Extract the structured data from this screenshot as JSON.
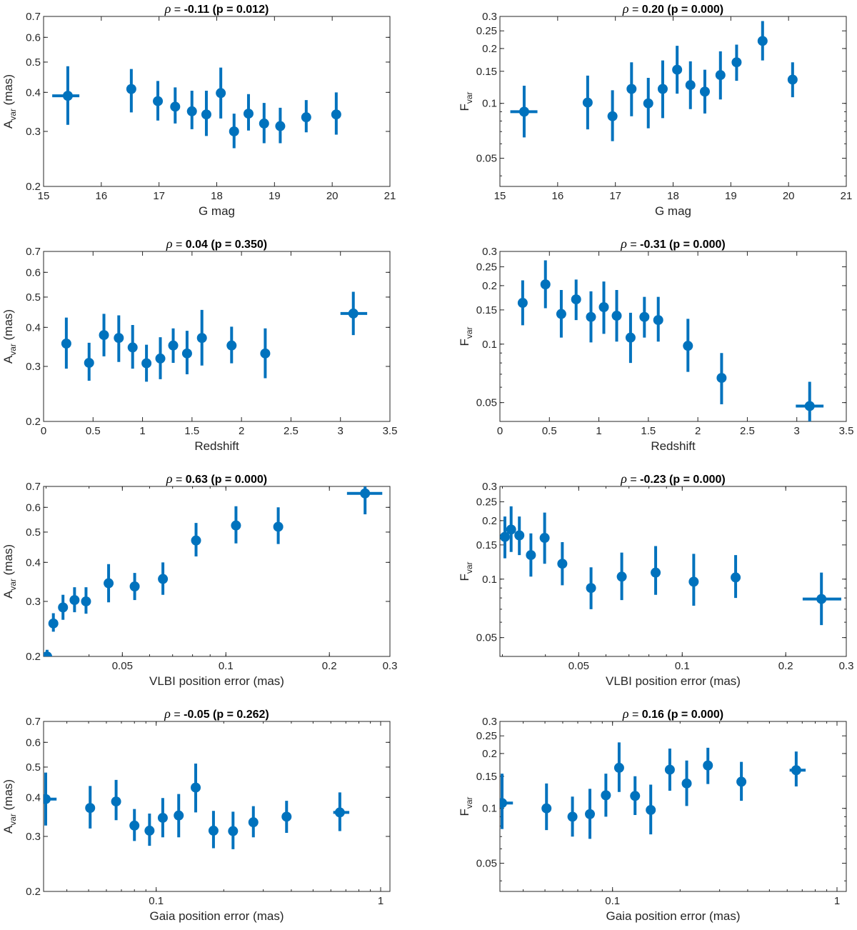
{
  "figure": {
    "marker_color": "#0072bd",
    "axis_color": "#262626"
  },
  "chart_data": [
    {
      "type": "scatter",
      "title_value": "-0.11",
      "title_p": "0.012",
      "xlabel": "G mag",
      "ylabel": "A",
      "ylabel_sub": "var",
      "ylabel_unit": " (mas)",
      "xscale": "linear",
      "yscale": "log",
      "xlim": [
        15,
        21
      ],
      "ylim": [
        0.2,
        0.7
      ],
      "xticks": [
        15,
        16,
        17,
        18,
        19,
        20,
        21
      ],
      "xtick_labels": [
        "15",
        "16",
        "17",
        "18",
        "19",
        "20",
        "21"
      ],
      "yticks": [
        0.2,
        0.3,
        0.4,
        0.5,
        0.6,
        0.7
      ],
      "ytick_labels": [
        "0.2",
        "0.3",
        "0.4",
        "0.5",
        "0.6",
        "0.7"
      ],
      "points": [
        {
          "x": 15.42,
          "y": 0.39,
          "ylo": 0.315,
          "yhi": 0.485,
          "xlo": 15.15,
          "xhi": 15.62
        },
        {
          "x": 16.52,
          "y": 0.41,
          "ylo": 0.345,
          "yhi": 0.475
        },
        {
          "x": 16.98,
          "y": 0.375,
          "ylo": 0.325,
          "yhi": 0.435
        },
        {
          "x": 17.28,
          "y": 0.36,
          "ylo": 0.318,
          "yhi": 0.415
        },
        {
          "x": 17.57,
          "y": 0.348,
          "ylo": 0.305,
          "yhi": 0.405
        },
        {
          "x": 17.82,
          "y": 0.34,
          "ylo": 0.29,
          "yhi": 0.405
        },
        {
          "x": 18.07,
          "y": 0.398,
          "ylo": 0.33,
          "yhi": 0.48
        },
        {
          "x": 18.3,
          "y": 0.3,
          "ylo": 0.265,
          "yhi": 0.342
        },
        {
          "x": 18.55,
          "y": 0.342,
          "ylo": 0.302,
          "yhi": 0.395
        },
        {
          "x": 18.82,
          "y": 0.318,
          "ylo": 0.275,
          "yhi": 0.37
        },
        {
          "x": 19.1,
          "y": 0.312,
          "ylo": 0.275,
          "yhi": 0.357
        },
        {
          "x": 19.55,
          "y": 0.333,
          "ylo": 0.298,
          "yhi": 0.378
        },
        {
          "x": 20.07,
          "y": 0.34,
          "ylo": 0.293,
          "yhi": 0.4
        }
      ]
    },
    {
      "type": "scatter",
      "title_value": "0.20",
      "title_p": "0.000",
      "xlabel": "G mag",
      "ylabel": "F",
      "ylabel_sub": "var",
      "ylabel_unit": "",
      "xscale": "linear",
      "yscale": "log",
      "xlim": [
        15,
        21
      ],
      "ylim": [
        0.035,
        0.3
      ],
      "xticks": [
        15,
        16,
        17,
        18,
        19,
        20,
        21
      ],
      "xtick_labels": [
        "15",
        "16",
        "17",
        "18",
        "19",
        "20",
        "21"
      ],
      "yticks": [
        0.05,
        0.1,
        0.15,
        0.2,
        0.25,
        0.3
      ],
      "ytick_labels": [
        "0.05",
        "0.1",
        "0.15",
        "0.2",
        "0.25",
        "0.3"
      ],
      "points": [
        {
          "x": 15.42,
          "y": 0.09,
          "ylo": 0.065,
          "yhi": 0.125,
          "xlo": 15.18,
          "xhi": 15.65
        },
        {
          "x": 16.52,
          "y": 0.101,
          "ylo": 0.072,
          "yhi": 0.142
        },
        {
          "x": 16.95,
          "y": 0.085,
          "ylo": 0.062,
          "yhi": 0.118
        },
        {
          "x": 17.28,
          "y": 0.12,
          "ylo": 0.085,
          "yhi": 0.168
        },
        {
          "x": 17.57,
          "y": 0.1,
          "ylo": 0.073,
          "yhi": 0.138
        },
        {
          "x": 17.82,
          "y": 0.12,
          "ylo": 0.083,
          "yhi": 0.172
        },
        {
          "x": 18.07,
          "y": 0.153,
          "ylo": 0.113,
          "yhi": 0.207
        },
        {
          "x": 18.3,
          "y": 0.126,
          "ylo": 0.093,
          "yhi": 0.17
        },
        {
          "x": 18.55,
          "y": 0.116,
          "ylo": 0.088,
          "yhi": 0.153
        },
        {
          "x": 18.82,
          "y": 0.143,
          "ylo": 0.105,
          "yhi": 0.193
        },
        {
          "x": 19.1,
          "y": 0.168,
          "ylo": 0.133,
          "yhi": 0.21
        },
        {
          "x": 19.55,
          "y": 0.22,
          "ylo": 0.172,
          "yhi": 0.283
        },
        {
          "x": 20.07,
          "y": 0.135,
          "ylo": 0.108,
          "yhi": 0.168
        }
      ]
    },
    {
      "type": "scatter",
      "title_value": "0.04",
      "title_p": "0.350",
      "xlabel": "Redshift",
      "ylabel": "A",
      "ylabel_sub": "var",
      "ylabel_unit": " (mas)",
      "xscale": "linear",
      "yscale": "log",
      "xlim": [
        0,
        3.5
      ],
      "ylim": [
        0.2,
        0.7
      ],
      "xticks": [
        0,
        0.5,
        1,
        1.5,
        2,
        2.5,
        3,
        3.5
      ],
      "xtick_labels": [
        "0",
        "0.5",
        "1",
        "1.5",
        "2",
        "2.5",
        "3",
        "3.5"
      ],
      "yticks": [
        0.2,
        0.3,
        0.4,
        0.5,
        0.6,
        0.7
      ],
      "ytick_labels": [
        "0.2",
        "0.3",
        "0.4",
        "0.5",
        "0.6",
        "0.7"
      ],
      "points": [
        {
          "x": 0.23,
          "y": 0.355,
          "ylo": 0.295,
          "yhi": 0.43
        },
        {
          "x": 0.46,
          "y": 0.308,
          "ylo": 0.27,
          "yhi": 0.357
        },
        {
          "x": 0.61,
          "y": 0.378,
          "ylo": 0.323,
          "yhi": 0.442
        },
        {
          "x": 0.76,
          "y": 0.37,
          "ylo": 0.31,
          "yhi": 0.437
        },
        {
          "x": 0.9,
          "y": 0.345,
          "ylo": 0.295,
          "yhi": 0.407
        },
        {
          "x": 1.04,
          "y": 0.307,
          "ylo": 0.268,
          "yhi": 0.352
        },
        {
          "x": 1.18,
          "y": 0.318,
          "ylo": 0.273,
          "yhi": 0.372
        },
        {
          "x": 1.31,
          "y": 0.35,
          "ylo": 0.308,
          "yhi": 0.397
        },
        {
          "x": 1.45,
          "y": 0.33,
          "ylo": 0.283,
          "yhi": 0.39
        },
        {
          "x": 1.6,
          "y": 0.37,
          "ylo": 0.302,
          "yhi": 0.455
        },
        {
          "x": 1.9,
          "y": 0.35,
          "ylo": 0.307,
          "yhi": 0.402
        },
        {
          "x": 2.24,
          "y": 0.33,
          "ylo": 0.275,
          "yhi": 0.397
        },
        {
          "x": 3.13,
          "y": 0.443,
          "ylo": 0.378,
          "yhi": 0.52,
          "xlo": 3.0,
          "xhi": 3.27
        }
      ]
    },
    {
      "type": "scatter",
      "title_value": "-0.31",
      "title_p": "0.000",
      "xlabel": "Redshift",
      "ylabel": "F",
      "ylabel_sub": "var",
      "ylabel_unit": "",
      "xscale": "linear",
      "yscale": "log",
      "xlim": [
        0,
        3.5
      ],
      "ylim": [
        0.04,
        0.3
      ],
      "xticks": [
        0,
        0.5,
        1,
        1.5,
        2,
        2.5,
        3,
        3.5
      ],
      "xtick_labels": [
        "0",
        "0.5",
        "1",
        "1.5",
        "2",
        "2.5",
        "3",
        "3.5"
      ],
      "yticks": [
        0.05,
        0.1,
        0.15,
        0.2,
        0.25,
        0.3
      ],
      "ytick_labels": [
        "0.05",
        "0.1",
        "0.15",
        "0.2",
        "0.25",
        "0.3"
      ],
      "points": [
        {
          "x": 0.23,
          "y": 0.163,
          "ylo": 0.125,
          "yhi": 0.213
        },
        {
          "x": 0.46,
          "y": 0.203,
          "ylo": 0.153,
          "yhi": 0.27
        },
        {
          "x": 0.62,
          "y": 0.143,
          "ylo": 0.108,
          "yhi": 0.19
        },
        {
          "x": 0.77,
          "y": 0.17,
          "ylo": 0.133,
          "yhi": 0.215
        },
        {
          "x": 0.92,
          "y": 0.138,
          "ylo": 0.102,
          "yhi": 0.187
        },
        {
          "x": 1.05,
          "y": 0.155,
          "ylo": 0.113,
          "yhi": 0.21
        },
        {
          "x": 1.18,
          "y": 0.14,
          "ylo": 0.103,
          "yhi": 0.19
        },
        {
          "x": 1.32,
          "y": 0.108,
          "ylo": 0.08,
          "yhi": 0.145
        },
        {
          "x": 1.46,
          "y": 0.138,
          "ylo": 0.108,
          "yhi": 0.175
        },
        {
          "x": 1.6,
          "y": 0.133,
          "ylo": 0.103,
          "yhi": 0.175
        },
        {
          "x": 1.9,
          "y": 0.098,
          "ylo": 0.072,
          "yhi": 0.135
        },
        {
          "x": 2.24,
          "y": 0.067,
          "ylo": 0.049,
          "yhi": 0.09
        },
        {
          "x": 3.13,
          "y": 0.048,
          "ylo": 0.04,
          "yhi": 0.064,
          "xlo": 2.99,
          "xhi": 3.27
        }
      ]
    },
    {
      "type": "scatter",
      "title_value": "0.63",
      "title_p": "0.000",
      "xlabel": "VLBI position error (mas)",
      "ylabel": "A",
      "ylabel_sub": "var",
      "ylabel_unit": " (mas)",
      "xscale": "log",
      "yscale": "log",
      "xlim": [
        0.0295,
        0.3
      ],
      "ylim": [
        0.2,
        0.7
      ],
      "xticks": [
        0.05,
        0.1,
        0.2,
        0.3
      ],
      "xtick_labels": [
        "0.05",
        "0.1",
        "0.2",
        "0.3"
      ],
      "yticks": [
        0.2,
        0.3,
        0.4,
        0.5,
        0.6,
        0.7
      ],
      "ytick_labels": [
        "0.2",
        "0.3",
        "0.4",
        "0.5",
        "0.6",
        "0.7"
      ],
      "points": [
        {
          "x": 0.0302,
          "y": 0.2,
          "ylo": 0.2,
          "yhi": 0.21,
          "xlo": 0.0296,
          "xhi": 0.0312
        },
        {
          "x": 0.0315,
          "y": 0.255,
          "ylo": 0.24,
          "yhi": 0.275
        },
        {
          "x": 0.0336,
          "y": 0.287,
          "ylo": 0.262,
          "yhi": 0.315
        },
        {
          "x": 0.0363,
          "y": 0.303,
          "ylo": 0.277,
          "yhi": 0.333
        },
        {
          "x": 0.0392,
          "y": 0.3,
          "ylo": 0.274,
          "yhi": 0.333
        },
        {
          "x": 0.0456,
          "y": 0.343,
          "ylo": 0.298,
          "yhi": 0.395
        },
        {
          "x": 0.0543,
          "y": 0.335,
          "ylo": 0.303,
          "yhi": 0.37
        },
        {
          "x": 0.0656,
          "y": 0.354,
          "ylo": 0.315,
          "yhi": 0.4
        },
        {
          "x": 0.0819,
          "y": 0.47,
          "ylo": 0.418,
          "yhi": 0.535
        },
        {
          "x": 0.107,
          "y": 0.525,
          "ylo": 0.46,
          "yhi": 0.605
        },
        {
          "x": 0.142,
          "y": 0.52,
          "ylo": 0.458,
          "yhi": 0.6
        },
        {
          "x": 0.254,
          "y": 0.665,
          "ylo": 0.57,
          "yhi": 0.7,
          "xlo": 0.225,
          "xhi": 0.285
        }
      ]
    },
    {
      "type": "scatter",
      "title_value": "-0.23",
      "title_p": "0.000",
      "xlabel": "VLBI position error (mas)",
      "ylabel": "F",
      "ylabel_sub": "var",
      "ylabel_unit": "",
      "xscale": "log",
      "yscale": "log",
      "xlim": [
        0.0295,
        0.3
      ],
      "ylim": [
        0.04,
        0.3
      ],
      "xticks": [
        0.05,
        0.1,
        0.2,
        0.3
      ],
      "xtick_labels": [
        "0.05",
        "0.1",
        "0.2",
        "0.3"
      ],
      "yticks": [
        0.05,
        0.1,
        0.15,
        0.2,
        0.25,
        0.3
      ],
      "ytick_labels": [
        "0.05",
        "0.1",
        "0.15",
        "0.2",
        "0.25",
        "0.3"
      ],
      "points": [
        {
          "x": 0.0305,
          "y": 0.165,
          "ylo": 0.128,
          "yhi": 0.21
        },
        {
          "x": 0.0318,
          "y": 0.18,
          "ylo": 0.138,
          "yhi": 0.237
        },
        {
          "x": 0.0336,
          "y": 0.168,
          "ylo": 0.133,
          "yhi": 0.21
        },
        {
          "x": 0.0363,
          "y": 0.133,
          "ylo": 0.103,
          "yhi": 0.172
        },
        {
          "x": 0.0398,
          "y": 0.163,
          "ylo": 0.12,
          "yhi": 0.22
        },
        {
          "x": 0.0448,
          "y": 0.12,
          "ylo": 0.093,
          "yhi": 0.155
        },
        {
          "x": 0.0543,
          "y": 0.09,
          "ylo": 0.07,
          "yhi": 0.115
        },
        {
          "x": 0.0667,
          "y": 0.103,
          "ylo": 0.078,
          "yhi": 0.137
        },
        {
          "x": 0.0837,
          "y": 0.108,
          "ylo": 0.083,
          "yhi": 0.148
        },
        {
          "x": 0.108,
          "y": 0.097,
          "ylo": 0.073,
          "yhi": 0.135
        },
        {
          "x": 0.143,
          "y": 0.102,
          "ylo": 0.08,
          "yhi": 0.133
        },
        {
          "x": 0.254,
          "y": 0.079,
          "ylo": 0.058,
          "yhi": 0.108,
          "xlo": 0.224,
          "xhi": 0.29
        }
      ]
    },
    {
      "type": "scatter",
      "title_value": "-0.05",
      "title_p": "0.262",
      "xlabel": "Gaia position error (mas)",
      "ylabel": "A",
      "ylabel_sub": "var",
      "ylabel_unit": " (mas)",
      "xscale": "log",
      "yscale": "log",
      "xlim": [
        0.0315,
        1.1
      ],
      "ylim": [
        0.2,
        0.7
      ],
      "xticks": [
        0.1,
        1
      ],
      "xtick_labels": [
        "0.1",
        "1"
      ],
      "yticks": [
        0.2,
        0.3,
        0.4,
        0.5,
        0.6,
        0.7
      ],
      "ytick_labels": [
        "0.2",
        "0.3",
        "0.4",
        "0.5",
        "0.6",
        "0.7"
      ],
      "points": [
        {
          "x": 0.0322,
          "y": 0.395,
          "ylo": 0.325,
          "yhi": 0.48,
          "xlo": 0.0315,
          "xhi": 0.036
        },
        {
          "x": 0.0508,
          "y": 0.37,
          "ylo": 0.318,
          "yhi": 0.435
        },
        {
          "x": 0.0663,
          "y": 0.388,
          "ylo": 0.338,
          "yhi": 0.455
        },
        {
          "x": 0.08,
          "y": 0.325,
          "ylo": 0.29,
          "yhi": 0.367
        },
        {
          "x": 0.0934,
          "y": 0.313,
          "ylo": 0.28,
          "yhi": 0.355
        },
        {
          "x": 0.107,
          "y": 0.344,
          "ylo": 0.298,
          "yhi": 0.398
        },
        {
          "x": 0.126,
          "y": 0.35,
          "ylo": 0.298,
          "yhi": 0.41
        },
        {
          "x": 0.15,
          "y": 0.43,
          "ylo": 0.358,
          "yhi": 0.513
        },
        {
          "x": 0.18,
          "y": 0.313,
          "ylo": 0.275,
          "yhi": 0.362
        },
        {
          "x": 0.22,
          "y": 0.312,
          "ylo": 0.273,
          "yhi": 0.36
        },
        {
          "x": 0.271,
          "y": 0.333,
          "ylo": 0.298,
          "yhi": 0.375
        },
        {
          "x": 0.381,
          "y": 0.347,
          "ylo": 0.308,
          "yhi": 0.39
        },
        {
          "x": 0.658,
          "y": 0.358,
          "ylo": 0.312,
          "yhi": 0.415,
          "xlo": 0.615,
          "xhi": 0.725
        }
      ]
    },
    {
      "type": "scatter",
      "title_value": "0.16",
      "title_p": "0.000",
      "xlabel": "Gaia position error (mas)",
      "ylabel": "F",
      "ylabel_sub": "var",
      "ylabel_unit": "",
      "xscale": "log",
      "yscale": "log",
      "xlim": [
        0.0315,
        1.1
      ],
      "ylim": [
        0.035,
        0.3
      ],
      "xticks": [
        0.1,
        1
      ],
      "xtick_labels": [
        "0.1",
        "1"
      ],
      "yticks": [
        0.05,
        0.1,
        0.15,
        0.2,
        0.25,
        0.3
      ],
      "ytick_labels": [
        "0.05",
        "0.1",
        "0.15",
        "0.2",
        "0.25",
        "0.3"
      ],
      "points": [
        {
          "x": 0.0322,
          "y": 0.107,
          "ylo": 0.077,
          "yhi": 0.155,
          "xlo": 0.0315,
          "xhi": 0.036
        },
        {
          "x": 0.0508,
          "y": 0.1,
          "ylo": 0.076,
          "yhi": 0.137
        },
        {
          "x": 0.0663,
          "y": 0.09,
          "ylo": 0.07,
          "yhi": 0.116
        },
        {
          "x": 0.0793,
          "y": 0.093,
          "ylo": 0.068,
          "yhi": 0.128
        },
        {
          "x": 0.0934,
          "y": 0.118,
          "ylo": 0.09,
          "yhi": 0.155
        },
        {
          "x": 0.107,
          "y": 0.167,
          "ylo": 0.123,
          "yhi": 0.23
        },
        {
          "x": 0.126,
          "y": 0.117,
          "ylo": 0.092,
          "yhi": 0.15
        },
        {
          "x": 0.148,
          "y": 0.098,
          "ylo": 0.072,
          "yhi": 0.135
        },
        {
          "x": 0.18,
          "y": 0.163,
          "ylo": 0.125,
          "yhi": 0.213
        },
        {
          "x": 0.214,
          "y": 0.137,
          "ylo": 0.103,
          "yhi": 0.183
        },
        {
          "x": 0.266,
          "y": 0.172,
          "ylo": 0.136,
          "yhi": 0.215
        },
        {
          "x": 0.375,
          "y": 0.14,
          "ylo": 0.11,
          "yhi": 0.18
        },
        {
          "x": 0.658,
          "y": 0.162,
          "ylo": 0.132,
          "yhi": 0.205,
          "xlo": 0.615,
          "xhi": 0.725
        }
      ]
    }
  ]
}
